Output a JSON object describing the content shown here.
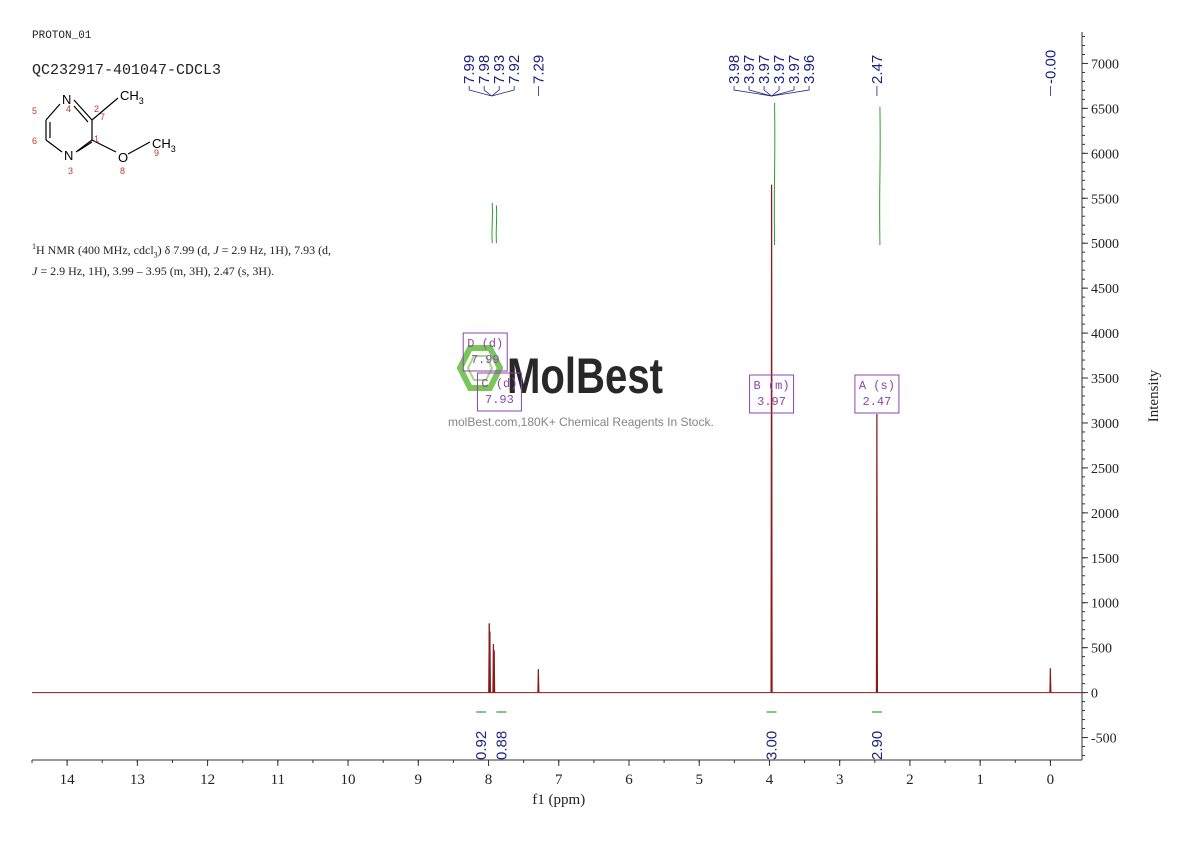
{
  "header": {
    "experiment": "PROTON_01",
    "sample": "QC232917-401047-CDCL3"
  },
  "structure": {
    "atoms": [
      {
        "symbol": "N",
        "num": "4"
      },
      {
        "symbol": "N",
        "num": "3"
      },
      {
        "symbol": "O",
        "num": "8"
      },
      {
        "symbol": "CH",
        "sub": "3",
        "num": "7"
      },
      {
        "symbol": "CH",
        "sub": "3",
        "num": "9"
      }
    ],
    "ring_numbers": [
      "5",
      "6",
      "2",
      "1"
    ]
  },
  "description": {
    "sup": "1",
    "line1": "H NMR (400 MHz, cdcl",
    "sub": "3",
    "line1b": ") δ 7.99 (d, ",
    "j1": "J",
    "line1c": " = 2.9 Hz, 1H), 7.93 (d,",
    "j2": "J",
    "line2": " = 2.9 Hz, 1H), 3.99 – 3.95 (m, 3H), 2.47 (s, 3H)."
  },
  "watermark": {
    "brand": "MolBest",
    "tagline": "molBest.com,180K+ Chemical Reagents In Stock."
  },
  "colors": {
    "spectrum": "#8b1a1a",
    "peak_labels": "#1a237e",
    "integral": "#2e9e2e",
    "multiplet_box": "#8e44ad",
    "axis": "#333333",
    "watermark": "#6cc04a"
  },
  "chart_data": {
    "type": "line",
    "xlabel": "f1 (ppm)",
    "ylabel": "Intensity",
    "xlim": [
      14.5,
      -0.45
    ],
    "ylim": [
      -750,
      7350
    ],
    "x_ticks": [
      14,
      13,
      12,
      11,
      10,
      9,
      8,
      7,
      6,
      5,
      4,
      3,
      2,
      1,
      0
    ],
    "y_ticks": [
      -500,
      0,
      500,
      1000,
      1500,
      2000,
      2500,
      3000,
      3500,
      4000,
      4500,
      5000,
      5500,
      6000,
      6500,
      7000
    ],
    "peaks": [
      {
        "ppm": 7.99,
        "height": 770
      },
      {
        "ppm": 7.98,
        "height": 680
      },
      {
        "ppm": 7.93,
        "height": 540
      },
      {
        "ppm": 7.92,
        "height": 470
      },
      {
        "ppm": 7.29,
        "height": 260
      },
      {
        "ppm": 3.97,
        "height": 5650
      },
      {
        "ppm": 2.47,
        "height": 3100
      },
      {
        "ppm": 0.0,
        "height": 270
      }
    ],
    "peak_label_groups": [
      {
        "labels": [
          "7.99",
          "7.98",
          "7.93",
          "7.92"
        ],
        "target": 7.955
      },
      {
        "labels": [
          "7.29"
        ],
        "target": 7.29
      },
      {
        "labels": [
          "3.98",
          "3.97",
          "3.97",
          "3.97",
          "3.97",
          "3.96"
        ],
        "target": 3.97
      },
      {
        "labels": [
          "2.47"
        ],
        "target": 2.47
      },
      {
        "labels": [
          "-0.00"
        ],
        "target": 0.0
      }
    ],
    "multiplets": [
      {
        "id": "D",
        "mult": "(d)",
        "shift": "7.99",
        "ppm": 7.99
      },
      {
        "id": "C",
        "mult": "(d)",
        "shift": "7.93",
        "ppm": 7.93
      },
      {
        "id": "B",
        "mult": "(m)",
        "shift": "3.97",
        "ppm": 3.97
      },
      {
        "id": "A",
        "mult": "(s)",
        "shift": "2.47",
        "ppm": 2.47
      }
    ],
    "integrals": [
      {
        "value": "0.92",
        "ppm": 7.99
      },
      {
        "value": "0.88",
        "ppm": 7.93
      },
      {
        "value": "3.00",
        "ppm": 3.97
      },
      {
        "value": "2.90",
        "ppm": 2.47
      }
    ],
    "integral_curves": [
      {
        "ppm": 7.99,
        "from": 5000,
        "to": 5450
      },
      {
        "ppm": 7.93,
        "from": 5000,
        "to": 5420
      },
      {
        "ppm": 3.97,
        "from": 4980,
        "to": 6560
      },
      {
        "ppm": 2.47,
        "from": 4980,
        "to": 6520
      }
    ]
  }
}
